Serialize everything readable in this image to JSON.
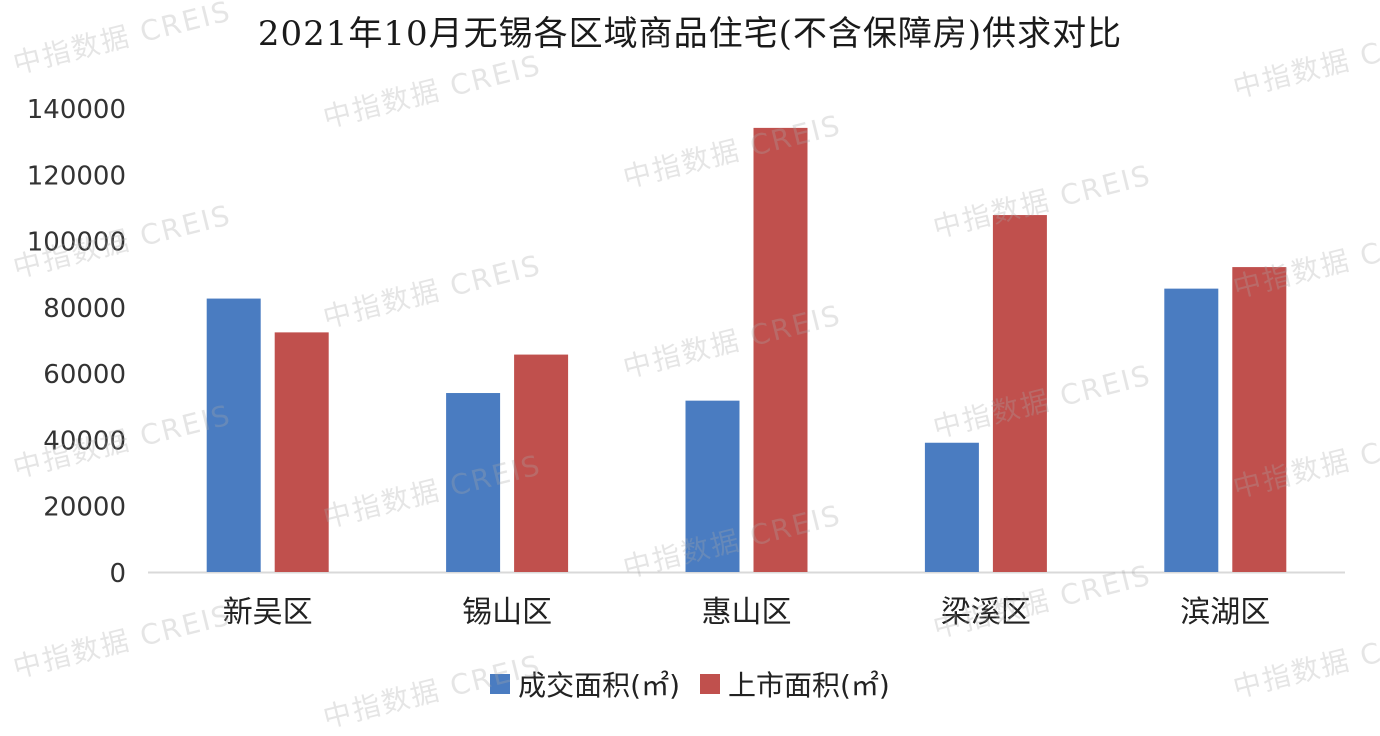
{
  "chart_data": {
    "type": "bar",
    "title": "2021年10月无锡各区域商品住宅(不含保障房)供求对比",
    "categories": [
      "新吴区",
      "锡山区",
      "惠山区",
      "梁溪区",
      "滨湖区"
    ],
    "series": [
      {
        "name": "成交面积(㎡)",
        "color": "#4a7cc1",
        "values": [
          82500,
          54000,
          51700,
          39000,
          85500
        ]
      },
      {
        "name": "上市面积(㎡)",
        "color": "#c0504d",
        "values": [
          72300,
          65600,
          134000,
          107700,
          92000
        ]
      }
    ],
    "ylim": [
      0,
      140000
    ],
    "yticks": [
      "0",
      "20000",
      "40000",
      "60000",
      "80000",
      "100000",
      "120000",
      "140000"
    ],
    "grid": false,
    "legend_position": "bottom"
  },
  "watermark": {
    "text": "中指数据 CREIS"
  }
}
